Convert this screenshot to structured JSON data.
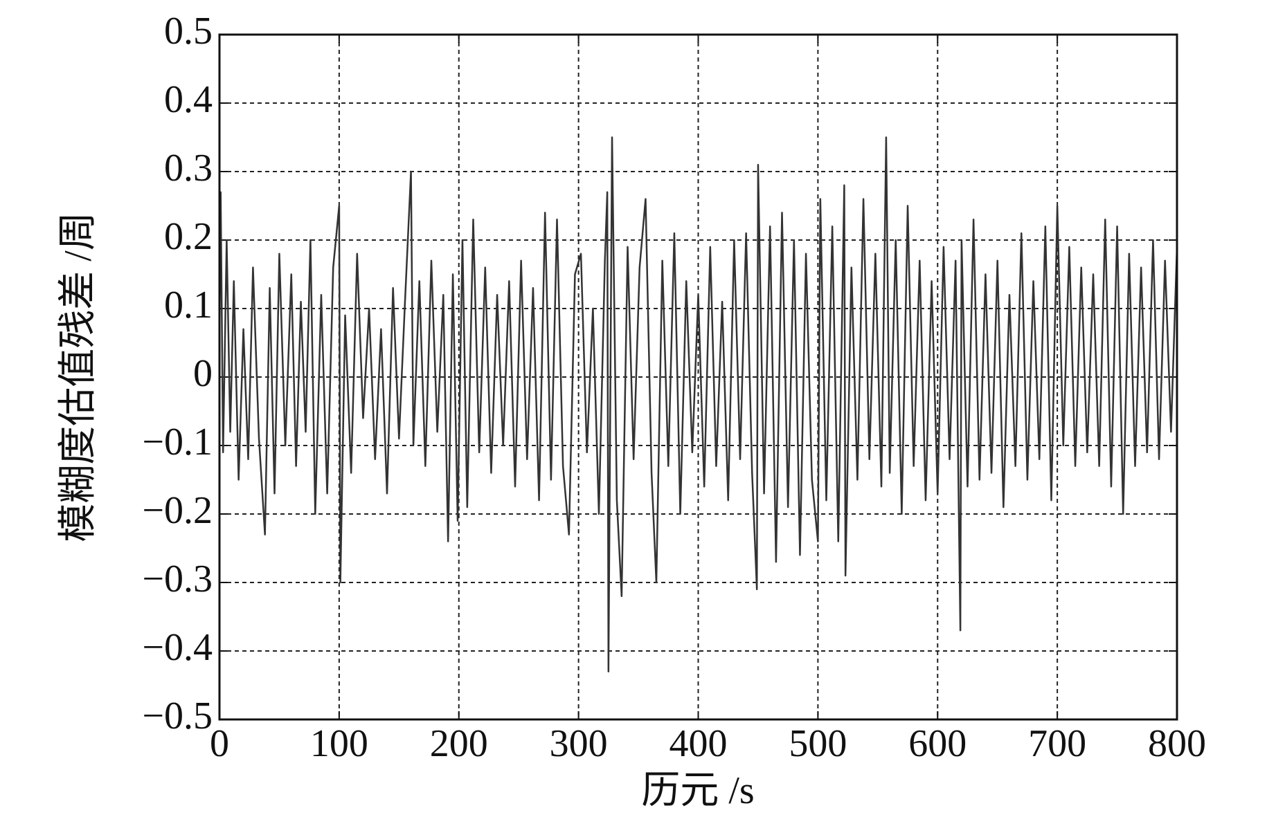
{
  "chart_data": {
    "type": "line",
    "xlabel": "历元 /s",
    "ylabel": "模糊度估值残差 /周",
    "color": "#333333",
    "grid": true,
    "xlim": [
      0,
      800
    ],
    "xticks": [
      0,
      100,
      200,
      300,
      400,
      500,
      600,
      700,
      800
    ],
    "ylim": [
      -0.5,
      0.5
    ],
    "yticks": [
      {
        "value": -0.5,
        "label": "−0.5"
      },
      {
        "value": -0.4,
        "label": "−0.4"
      },
      {
        "value": -0.3,
        "label": "−0.3"
      },
      {
        "value": -0.2,
        "label": "−0.2"
      },
      {
        "value": -0.1,
        "label": "−0.1"
      },
      0,
      0.1,
      0.2,
      0.3,
      0.4,
      0.5
    ],
    "x": [
      0,
      1,
      3,
      6,
      9,
      12,
      16,
      20,
      24,
      28,
      33,
      38,
      42,
      46,
      50,
      55,
      60,
      64,
      68,
      72,
      76,
      80,
      85,
      90,
      95,
      100,
      101,
      105,
      110,
      115,
      120,
      125,
      130,
      135,
      140,
      145,
      150,
      155,
      160,
      162,
      167,
      172,
      177,
      182,
      187,
      191,
      195,
      199,
      203,
      207,
      212,
      217,
      222,
      227,
      232,
      237,
      242,
      247,
      252,
      257,
      262,
      267,
      272,
      277,
      282,
      287,
      292,
      297,
      302,
      307,
      312,
      317,
      322,
      324,
      325,
      328,
      332,
      336,
      341,
      346,
      351,
      356,
      361,
      365,
      370,
      375,
      380,
      385,
      390,
      395,
      400,
      405,
      410,
      415,
      420,
      425,
      430,
      435,
      440,
      445,
      449,
      450,
      455,
      460,
      465,
      470,
      475,
      480,
      485,
      490,
      495,
      500,
      502,
      507,
      512,
      517,
      522,
      523,
      528,
      533,
      538,
      543,
      548,
      553,
      557,
      560,
      565,
      570,
      575,
      580,
      585,
      590,
      595,
      600,
      605,
      610,
      615,
      619,
      620,
      625,
      630,
      635,
      640,
      645,
      650,
      655,
      660,
      665,
      670,
      675,
      680,
      685,
      690,
      695,
      700,
      705,
      710,
      715,
      720,
      725,
      730,
      735,
      740,
      745,
      750,
      755,
      760,
      765,
      770,
      775,
      780,
      785,
      790,
      795,
      800
    ],
    "values": [
      0.05,
      0.27,
      -0.11,
      0.2,
      -0.08,
      0.14,
      -0.15,
      0.07,
      -0.12,
      0.16,
      -0.09,
      -0.23,
      0.13,
      -0.17,
      0.18,
      -0.1,
      0.15,
      -0.13,
      0.11,
      -0.08,
      0.2,
      -0.2,
      0.12,
      -0.17,
      0.16,
      0.25,
      -0.3,
      0.09,
      -0.14,
      0.18,
      -0.06,
      0.1,
      -0.12,
      0.07,
      -0.17,
      0.13,
      -0.09,
      0.11,
      0.3,
      -0.1,
      0.14,
      -0.13,
      0.17,
      -0.08,
      0.12,
      -0.24,
      0.15,
      -0.21,
      0.2,
      -0.19,
      0.23,
      -0.11,
      0.16,
      -0.14,
      0.12,
      -0.1,
      0.14,
      -0.16,
      0.17,
      -0.12,
      0.13,
      -0.18,
      0.24,
      -0.15,
      0.23,
      -0.13,
      -0.23,
      0.15,
      0.18,
      -0.11,
      0.1,
      -0.2,
      0.17,
      0.27,
      -0.43,
      0.35,
      -0.18,
      -0.32,
      0.19,
      -0.12,
      0.16,
      0.26,
      -0.14,
      -0.3,
      0.17,
      -0.13,
      0.21,
      -0.2,
      0.14,
      -0.11,
      0.12,
      -0.16,
      0.19,
      -0.13,
      0.11,
      -0.18,
      0.2,
      -0.12,
      0.21,
      -0.14,
      -0.31,
      0.31,
      -0.17,
      0.22,
      -0.27,
      0.24,
      -0.19,
      0.2,
      -0.26,
      0.18,
      -0.15,
      -0.24,
      0.26,
      -0.18,
      0.22,
      -0.24,
      0.28,
      -0.29,
      0.16,
      -0.15,
      0.26,
      -0.12,
      0.18,
      -0.16,
      0.35,
      -0.14,
      0.2,
      -0.2,
      0.25,
      -0.13,
      0.17,
      -0.18,
      0.14,
      -0.17,
      0.19,
      -0.12,
      0.17,
      -0.37,
      0.2,
      -0.16,
      0.23,
      -0.15,
      0.15,
      -0.14,
      0.17,
      -0.19,
      0.12,
      -0.13,
      0.21,
      -0.15,
      0.14,
      -0.12,
      0.22,
      -0.18,
      0.25,
      -0.1,
      0.19,
      -0.13,
      0.16,
      -0.11,
      0.15,
      -0.13,
      0.23,
      -0.16,
      0.22,
      -0.2,
      0.18,
      -0.13,
      0.16,
      -0.11,
      0.2,
      -0.12,
      0.17,
      -0.08,
      0.19
    ]
  }
}
